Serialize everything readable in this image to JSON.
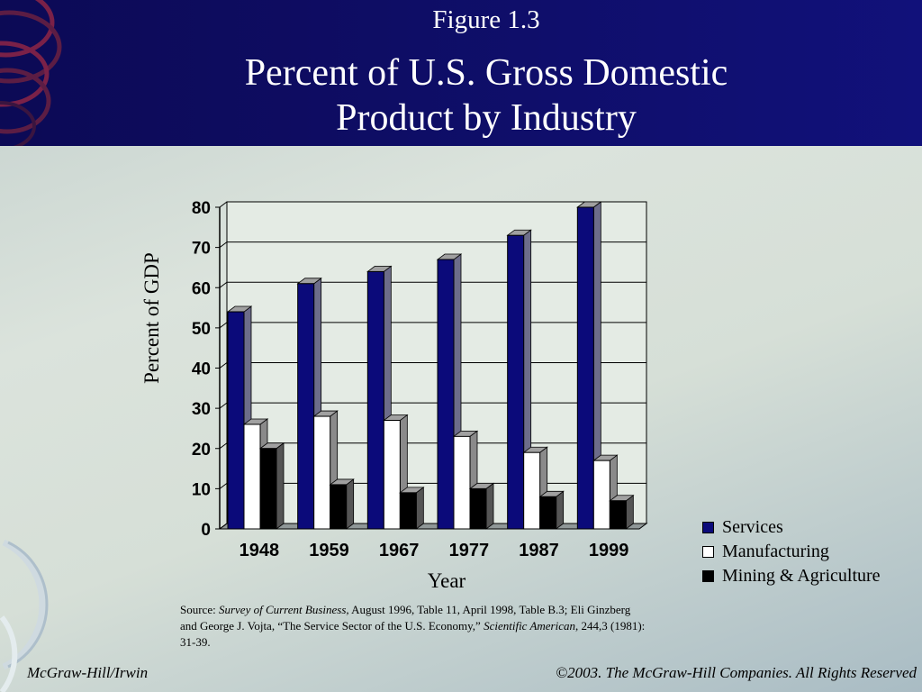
{
  "header": {
    "figure_label": "Figure 1.3",
    "title_line1": "Percent of U.S. Gross Domestic",
    "title_line2": "Product by Industry"
  },
  "chart_data": {
    "type": "bar",
    "categories": [
      "1948",
      "1959",
      "1967",
      "1977",
      "1987",
      "1999"
    ],
    "series": [
      {
        "name": "Services",
        "values": [
          54,
          61,
          64,
          67,
          73,
          80
        ]
      },
      {
        "name": "Manufacturing",
        "values": [
          26,
          28,
          27,
          23,
          19,
          17
        ]
      },
      {
        "name": "Mining & Agriculture",
        "values": [
          20,
          11,
          9,
          10,
          8,
          7
        ]
      }
    ],
    "title": "",
    "xlabel": "Year",
    "ylabel": "Percent of GDP",
    "ylim": [
      0,
      80
    ],
    "yticks": [
      "0",
      "10",
      "20",
      "30",
      "40",
      "50",
      "60",
      "70",
      "80"
    ],
    "grid": true,
    "legend_position": "bottom-right",
    "style": "3d-bars"
  },
  "colors": {
    "services": "#0b0a7a",
    "manufacturing": "#ffffff",
    "mining_agriculture": "#000000",
    "header_background": "#0c0a55"
  },
  "source": {
    "prefix": "Source:  ",
    "journal1": "Survey of Current Business,",
    "part2": " August 1996, Table 11, April 1998, Table B.3;  Eli Ginzberg and George J. Vojta, “The Service Sector of the U.S. Economy,” ",
    "journal2": "Scientific American",
    "part3": ", 244,3 (1981): 31-39."
  },
  "footer": {
    "left": "McGraw-Hill/Irwin",
    "right": "©2003. The McGraw-Hill Companies. All Rights Reserved"
  }
}
